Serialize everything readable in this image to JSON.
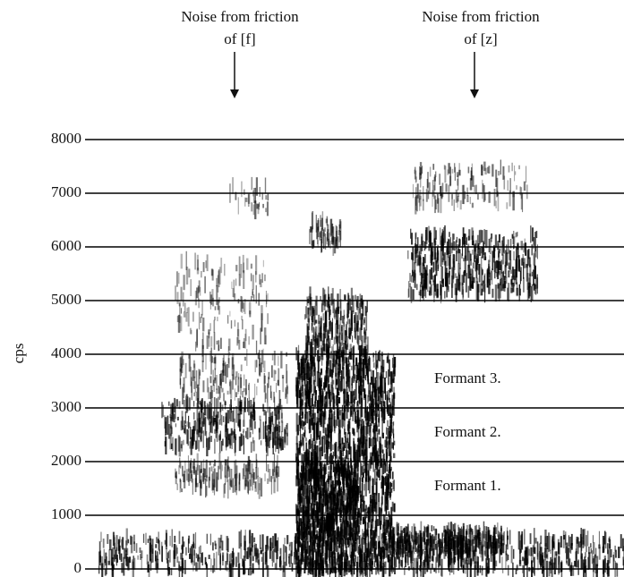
{
  "chart_data": {
    "type": "spectrogram",
    "ylabel": "cps",
    "ylim": [
      0,
      8000
    ],
    "yticks": [
      0,
      1000,
      2000,
      3000,
      4000,
      5000,
      6000,
      7000,
      8000
    ],
    "grid": true,
    "annotations": [
      {
        "lines": [
          "Noise from friction",
          "of [f]"
        ]
      },
      {
        "lines": [
          "Noise from friction",
          "of [z]"
        ]
      }
    ],
    "formant_labels": [
      "Formant 3.",
      "Formant 2.",
      "Formant 1."
    ]
  }
}
